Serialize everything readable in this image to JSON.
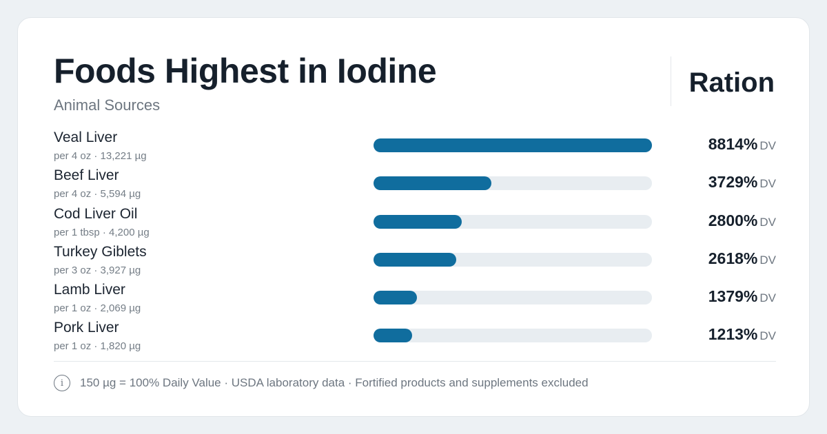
{
  "header": {
    "title": "Foods Highest in Iodine",
    "subtitle": "Animal Sources",
    "brand": "Ration"
  },
  "colors": {
    "bar_fill": "#106d9e",
    "bar_track": "#e8edf1",
    "text_dark": "#16202c",
    "text_muted": "#6d7680"
  },
  "chart_data": {
    "type": "bar",
    "orientation": "horizontal",
    "title": "Foods Highest in Iodine",
    "subtitle": "Animal Sources",
    "unit_suffix": "DV",
    "xlim": [
      0,
      8814
    ],
    "items": [
      {
        "name": "Veal Liver",
        "meta": "per 4 oz · 13,221 µg",
        "value": 8814,
        "value_label": "8814%"
      },
      {
        "name": "Beef Liver",
        "meta": "per 4 oz · 5,594 µg",
        "value": 3729,
        "value_label": "3729%"
      },
      {
        "name": "Cod Liver Oil",
        "meta": "per 1 tbsp · 4,200 µg",
        "value": 2800,
        "value_label": "2800%"
      },
      {
        "name": "Turkey Giblets",
        "meta": "per 3 oz · 3,927 µg",
        "value": 2618,
        "value_label": "2618%"
      },
      {
        "name": "Lamb Liver",
        "meta": "per 1 oz · 2,069 µg",
        "value": 1379,
        "value_label": "1379%"
      },
      {
        "name": "Pork Liver",
        "meta": "per 1 oz · 1,820 µg",
        "value": 1213,
        "value_label": "1213%"
      }
    ]
  },
  "footer": {
    "icon": "info-icon",
    "icon_glyph": "i",
    "text": "150 µg = 100% Daily Value · USDA laboratory data · Fortified products and supplements excluded"
  }
}
